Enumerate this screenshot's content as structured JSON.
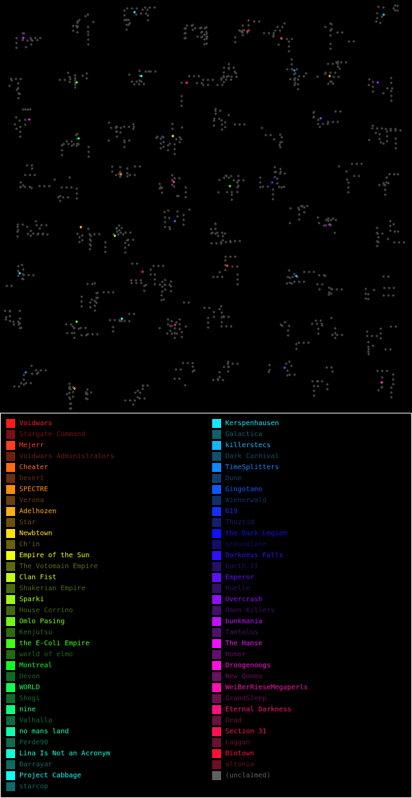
{
  "legend": {
    "left_column": [
      {
        "name": "Voidwars",
        "color": "#ff1a1a"
      },
      {
        "name": "Stargate Command",
        "color": "#7a1010"
      },
      {
        "name": "Mejerr",
        "color": "#ff3f1a"
      },
      {
        "name": "Voidwars Administrators",
        "color": "#6e2010"
      },
      {
        "name": "Cheater",
        "color": "#ff6a10"
      },
      {
        "name": "Desert",
        "color": "#6a2e10"
      },
      {
        "name": "SPECTRE",
        "color": "#ff8c10"
      },
      {
        "name": "Verona",
        "color": "#6a4010"
      },
      {
        "name": "Adelhozen",
        "color": "#ffb010"
      },
      {
        "name": "Star",
        "color": "#6a5010"
      },
      {
        "name": "Newbtown",
        "color": "#ffe010"
      },
      {
        "name": "Ch'in",
        "color": "#6a6010"
      },
      {
        "name": "Empire of the Sun",
        "color": "#f0ff10"
      },
      {
        "name": "The Votomain Empire",
        "color": "#5e6a10"
      },
      {
        "name": "Clan Fist",
        "color": "#c4ff10"
      },
      {
        "name": "Shakerian Empire",
        "color": "#4c6a10"
      },
      {
        "name": "Sparki",
        "color": "#9cff10"
      },
      {
        "name": "House Corrino",
        "color": "#3e6a10"
      },
      {
        "name": "Omlo Pasing",
        "color": "#70ff10"
      },
      {
        "name": "Kenjutsu",
        "color": "#2e6a10"
      },
      {
        "name": "the E-Coli Empire",
        "color": "#40ff10"
      },
      {
        "name": "world of elmo",
        "color": "#206a10"
      },
      {
        "name": "Montreal",
        "color": "#10ff20"
      },
      {
        "name": "Devon",
        "color": "#106a20"
      },
      {
        "name": "WORLD",
        "color": "#10ff50"
      },
      {
        "name": "Shogi",
        "color": "#106a30"
      },
      {
        "name": "nine",
        "color": "#10ff80"
      },
      {
        "name": "Valhalla",
        "color": "#106a40"
      },
      {
        "name": "no mans land",
        "color": "#10ffb0"
      },
      {
        "name": "Perde90",
        "color": "#106a50"
      },
      {
        "name": "Lina Is Not an Acronym",
        "color": "#10ffd8"
      },
      {
        "name": "Barrayar",
        "color": "#106a60"
      },
      {
        "name": "Project Cabbage",
        "color": "#10fff8"
      },
      {
        "name": "starcop",
        "color": "#106a6a"
      }
    ],
    "right_column": [
      {
        "name": "Kerspenhausen",
        "color": "#10e8ff"
      },
      {
        "name": "Galactica",
        "color": "#10606a"
      },
      {
        "name": "killerstecs",
        "color": "#10b8ff"
      },
      {
        "name": "Dark Carnival",
        "color": "#10506a"
      },
      {
        "name": "TimeSplitters",
        "color": "#1088ff"
      },
      {
        "name": "Dune",
        "color": "#10406a"
      },
      {
        "name": "Gingotano",
        "color": "#1058ff"
      },
      {
        "name": "Wienerwald",
        "color": "#10306a"
      },
      {
        "name": "619",
        "color": "#1030ff"
      },
      {
        "name": "Thuztid",
        "color": "#10206a"
      },
      {
        "name": "the Dark Legion",
        "color": "#1010ff"
      },
      {
        "name": "Groundlane",
        "color": "#10106a"
      },
      {
        "name": "Darkness Falls",
        "color": "#3010ff"
      },
      {
        "name": "Earth II",
        "color": "#20106a"
      },
      {
        "name": "Emperor",
        "color": "#6010ff"
      },
      {
        "name": "Hoelle",
        "color": "#30106a"
      },
      {
        "name": "Overcrash",
        "color": "#9010ff"
      },
      {
        "name": "Omen Killers",
        "color": "#40106a"
      },
      {
        "name": "bunkmania",
        "color": "#c010ff"
      },
      {
        "name": "Tantalus",
        "color": "#50106a"
      },
      {
        "name": "The Hanse",
        "color": "#ee10ff"
      },
      {
        "name": "Homer",
        "color": "#60106a"
      },
      {
        "name": "Droogenoogs",
        "color": "#ff10e0"
      },
      {
        "name": "New Qonos",
        "color": "#6a1060"
      },
      {
        "name": "WeiBerRieseMegaperls",
        "color": "#ff10b0"
      },
      {
        "name": "GrandSleep",
        "color": "#6a1050"
      },
      {
        "name": "Eternal Darkness",
        "color": "#ff1080"
      },
      {
        "name": "Dead",
        "color": "#6a1040"
      },
      {
        "name": "Section 31",
        "color": "#ff1050"
      },
      {
        "name": "Laggan",
        "color": "#6a1030"
      },
      {
        "name": "Biotown",
        "color": "#ff1030"
      },
      {
        "name": "altonia",
        "color": "#6a1020"
      },
      {
        "name": "(unclaimed)",
        "color": "#606060"
      }
    ]
  },
  "map": {
    "unclaimed_color": "#454545",
    "owned_dot_colors": [
      "#cc20ff",
      "#20e0ff",
      "#ff2020",
      "#ff4040",
      "#20c0ff",
      "#60ff40",
      "#20ffff",
      "#ff2040",
      "#2080ff",
      "#ffa020",
      "#a020ff",
      "#ff20c0",
      "#20ff60",
      "#ffee20",
      "#8040ff",
      "#ff8020",
      "#ff20a0",
      "#40ff20",
      "#2040ff",
      "#ffcc20",
      "#a0ff20",
      "#4060ff"
    ]
  }
}
